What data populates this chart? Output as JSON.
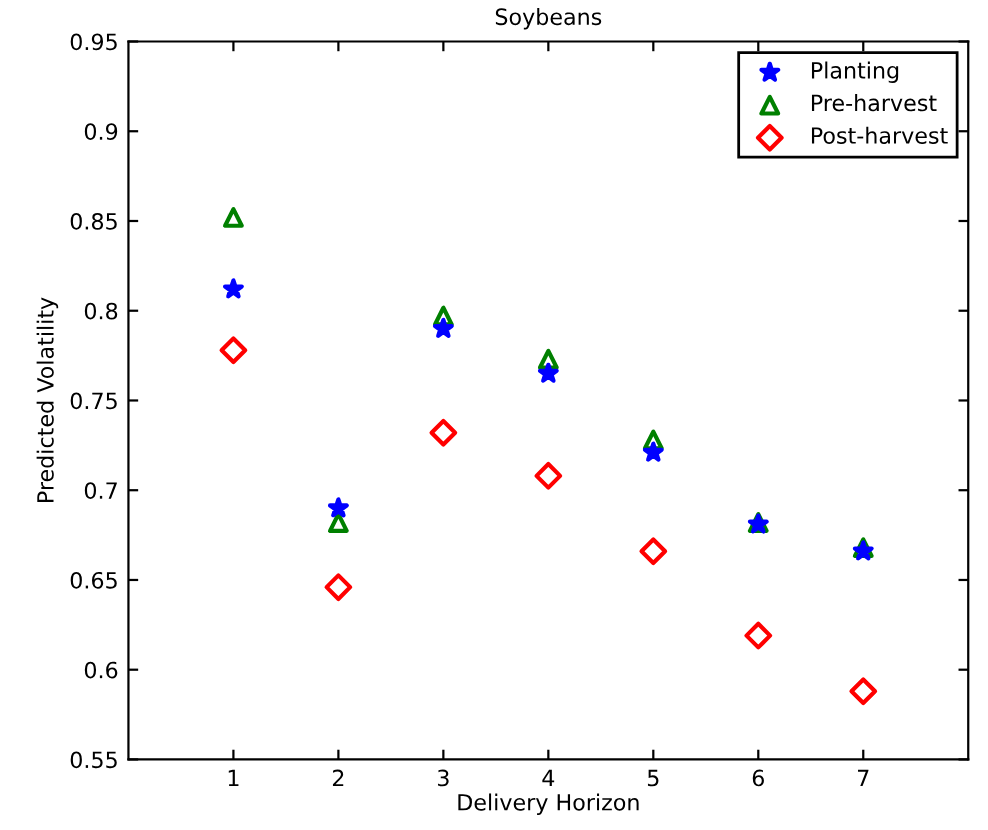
{
  "chart_data": {
    "type": "scatter",
    "title": "Soybeans",
    "xlabel": "Delivery Horizon",
    "ylabel": "Predicted Volatility",
    "x": [
      1,
      2,
      3,
      4,
      5,
      6,
      7
    ],
    "series": [
      {
        "name": "Planting",
        "color": "#0000ff",
        "marker": "star",
        "values": [
          0.812,
          0.69,
          0.79,
          0.765,
          0.721,
          0.681,
          0.666
        ]
      },
      {
        "name": "Pre-harvest",
        "color": "#008000",
        "marker": "triangle",
        "values": [
          0.852,
          0.682,
          0.797,
          0.773,
          0.728,
          0.682,
          0.668
        ]
      },
      {
        "name": "Post-harvest",
        "color": "#ff0000",
        "marker": "diamond",
        "values": [
          0.778,
          0.646,
          0.732,
          0.708,
          0.666,
          0.619,
          0.588
        ]
      }
    ],
    "xlim": [
      0,
      8
    ],
    "xticks": [
      1,
      2,
      3,
      4,
      5,
      6,
      7
    ],
    "ylim": [
      0.55,
      0.95
    ],
    "yticks": [
      0.55,
      0.6,
      0.65,
      0.7,
      0.75,
      0.8,
      0.85,
      0.9,
      0.95
    ],
    "legend": "top right"
  }
}
